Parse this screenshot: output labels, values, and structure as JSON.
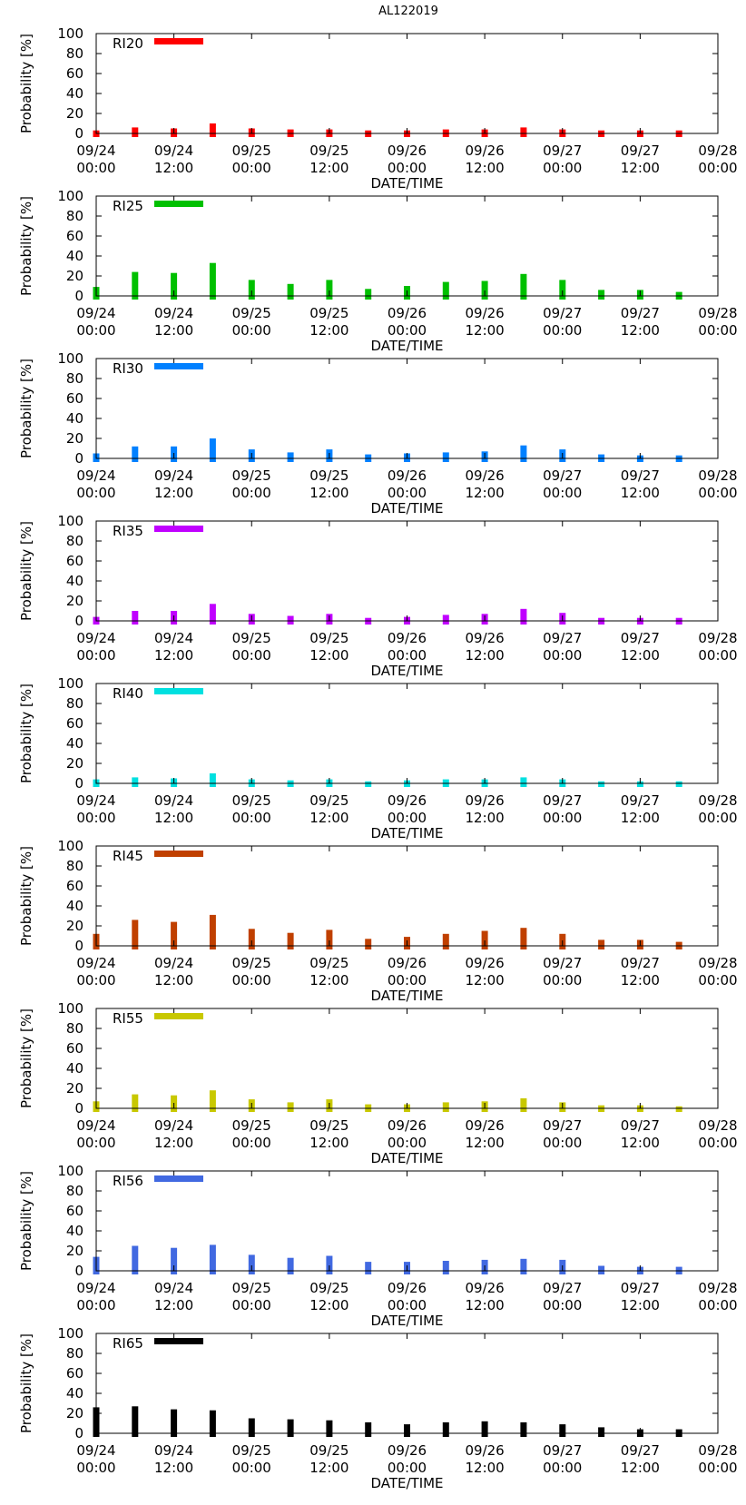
{
  "title": "AL122019",
  "chart_data": [
    {
      "type": "bar",
      "legend": "RI20",
      "color": "#ff0000",
      "ylabel": "Probability [%]",
      "xlabel": "DATE/TIME",
      "ylim": [
        0,
        100
      ],
      "yticks": [
        0,
        20,
        40,
        60,
        80,
        100
      ],
      "x_hours": [
        0,
        6,
        12,
        18,
        24,
        30,
        36,
        42,
        48,
        54,
        60,
        66,
        72,
        78,
        84,
        90
      ],
      "values": [
        3,
        6,
        5,
        10,
        5,
        4,
        4,
        3,
        3,
        4,
        4,
        6,
        4,
        3,
        3,
        3
      ]
    },
    {
      "type": "bar",
      "legend": "RI25",
      "color": "#00c000",
      "ylabel": "Probability [%]",
      "xlabel": "DATE/TIME",
      "ylim": [
        0,
        100
      ],
      "yticks": [
        0,
        20,
        40,
        60,
        80,
        100
      ],
      "x_hours": [
        0,
        6,
        12,
        18,
        24,
        30,
        36,
        42,
        48,
        54,
        60,
        66,
        72,
        78,
        84,
        90
      ],
      "values": [
        9,
        24,
        23,
        33,
        16,
        12,
        16,
        7,
        10,
        14,
        15,
        22,
        16,
        6,
        6,
        4
      ]
    },
    {
      "type": "bar",
      "legend": "RI30",
      "color": "#0080ff",
      "ylabel": "Probability [%]",
      "xlabel": "DATE/TIME",
      "ylim": [
        0,
        100
      ],
      "yticks": [
        0,
        20,
        40,
        60,
        80,
        100
      ],
      "x_hours": [
        0,
        6,
        12,
        18,
        24,
        30,
        36,
        42,
        48,
        54,
        60,
        66,
        72,
        78,
        84,
        90
      ],
      "values": [
        5,
        12,
        12,
        20,
        9,
        6,
        9,
        4,
        5,
        6,
        7,
        13,
        9,
        4,
        3,
        3
      ]
    },
    {
      "type": "bar",
      "legend": "RI35",
      "color": "#c000ff",
      "ylabel": "Probability [%]",
      "xlabel": "DATE/TIME",
      "ylim": [
        0,
        100
      ],
      "yticks": [
        0,
        20,
        40,
        60,
        80,
        100
      ],
      "x_hours": [
        0,
        6,
        12,
        18,
        24,
        30,
        36,
        42,
        48,
        54,
        60,
        66,
        72,
        78,
        84,
        90
      ],
      "values": [
        4,
        10,
        10,
        17,
        7,
        5,
        7,
        3,
        4,
        6,
        7,
        12,
        8,
        3,
        3,
        3
      ]
    },
    {
      "type": "bar",
      "legend": "RI40",
      "color": "#00e0e0",
      "ylabel": "Probability [%]",
      "xlabel": "DATE/TIME",
      "ylim": [
        0,
        100
      ],
      "yticks": [
        0,
        20,
        40,
        60,
        80,
        100
      ],
      "x_hours": [
        0,
        6,
        12,
        18,
        24,
        30,
        36,
        42,
        48,
        54,
        60,
        66,
        72,
        78,
        84,
        90
      ],
      "values": [
        4,
        6,
        5,
        10,
        4,
        3,
        4,
        2,
        3,
        4,
        4,
        6,
        4,
        2,
        2,
        2
      ]
    },
    {
      "type": "bar",
      "legend": "RI45",
      "color": "#c04000",
      "ylabel": "Probability [%]",
      "xlabel": "DATE/TIME",
      "ylim": [
        0,
        100
      ],
      "yticks": [
        0,
        20,
        40,
        60,
        80,
        100
      ],
      "x_hours": [
        0,
        6,
        12,
        18,
        24,
        30,
        36,
        42,
        48,
        54,
        60,
        66,
        72,
        78,
        84,
        90
      ],
      "values": [
        12,
        26,
        24,
        31,
        17,
        13,
        16,
        7,
        9,
        12,
        15,
        18,
        12,
        6,
        6,
        4
      ]
    },
    {
      "type": "bar",
      "legend": "RI55",
      "color": "#c8c800",
      "ylabel": "Probability [%]",
      "xlabel": "DATE/TIME",
      "ylim": [
        0,
        100
      ],
      "yticks": [
        0,
        20,
        40,
        60,
        80,
        100
      ],
      "x_hours": [
        0,
        6,
        12,
        18,
        24,
        30,
        36,
        42,
        48,
        54,
        60,
        66,
        72,
        78,
        84,
        90
      ],
      "values": [
        7,
        14,
        13,
        18,
        9,
        6,
        9,
        4,
        4,
        6,
        7,
        10,
        6,
        3,
        3,
        2
      ]
    },
    {
      "type": "bar",
      "legend": "RI56",
      "color": "#4169e1",
      "ylabel": "Probability [%]",
      "xlabel": "DATE/TIME",
      "ylim": [
        0,
        100
      ],
      "yticks": [
        0,
        20,
        40,
        60,
        80,
        100
      ],
      "x_hours": [
        0,
        6,
        12,
        18,
        24,
        30,
        36,
        42,
        48,
        54,
        60,
        66,
        72,
        78,
        84,
        90
      ],
      "values": [
        14,
        25,
        23,
        26,
        16,
        13,
        15,
        9,
        9,
        10,
        11,
        12,
        11,
        5,
        4,
        4
      ]
    },
    {
      "type": "bar",
      "legend": "RI65",
      "color": "#000000",
      "ylabel": "Probability [%]",
      "xlabel": "DATE/TIME",
      "ylim": [
        0,
        100
      ],
      "yticks": [
        0,
        20,
        40,
        60,
        80,
        100
      ],
      "x_hours": [
        0,
        6,
        12,
        18,
        24,
        30,
        36,
        42,
        48,
        54,
        60,
        66,
        72,
        78,
        84,
        90
      ],
      "values": [
        26,
        27,
        24,
        23,
        15,
        14,
        13,
        11,
        9,
        11,
        12,
        11,
        9,
        6,
        4,
        4
      ]
    }
  ],
  "xaxis": {
    "range_hours": [
      0,
      96
    ],
    "ticks": [
      {
        "hours": 0,
        "date": "09/24",
        "time": "00:00"
      },
      {
        "hours": 12,
        "date": "09/24",
        "time": "12:00"
      },
      {
        "hours": 24,
        "date": "09/25",
        "time": "00:00"
      },
      {
        "hours": 36,
        "date": "09/25",
        "time": "12:00"
      },
      {
        "hours": 48,
        "date": "09/26",
        "time": "00:00"
      },
      {
        "hours": 60,
        "date": "09/26",
        "time": "12:00"
      },
      {
        "hours": 72,
        "date": "09/27",
        "time": "00:00"
      },
      {
        "hours": 84,
        "date": "09/27",
        "time": "12:00"
      },
      {
        "hours": 96,
        "date": "09/28",
        "time": "00:00"
      }
    ]
  }
}
